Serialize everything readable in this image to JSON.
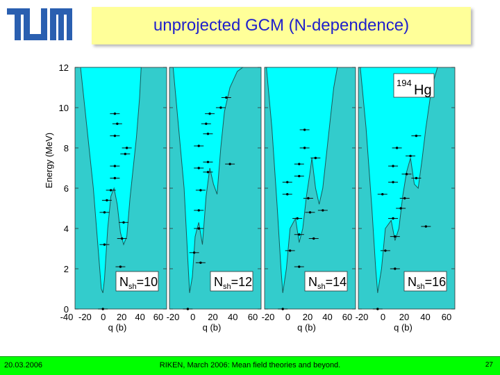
{
  "slide": {
    "title": "unprojected GCM (N-dependence)",
    "footer_date": "20.03.2006",
    "footer_center": "RIKEN, March 2006: Mean field theories and beyond.",
    "page_number": "27",
    "logo_text": "TUM"
  },
  "colors": {
    "title_bg": "#ffff99",
    "title_text": "#1f1fcc",
    "footer_bg": "#00ff00",
    "plot_bg": "#33cccc",
    "well_fill": "#00ffff"
  },
  "chart_data": {
    "type": "scatter",
    "ylabel": "Energy (MeV)",
    "xlabel": "q (b)",
    "ylim": [
      0,
      12
    ],
    "yticks": [
      0,
      2,
      4,
      6,
      8,
      10,
      12
    ],
    "grid": false,
    "nucleus_label": {
      "mass": "194",
      "symbol": "Hg"
    },
    "panels": [
      {
        "label": "N",
        "label_sub": "sh",
        "label_value": "=10",
        "xticks": [
          "-40",
          "-20",
          "0",
          "20",
          "40",
          "60"
        ],
        "levels": [
          {
            "q": -10,
            "E": 0.0
          },
          {
            "q": -8,
            "E": 3.2
          },
          {
            "q": -8,
            "E": 4.8
          },
          {
            "q": -5,
            "E": 5.4
          },
          {
            "q": 0,
            "E": 5.9
          },
          {
            "q": 5,
            "E": 6.5
          },
          {
            "q": 5,
            "E": 7.1
          },
          {
            "q": 5,
            "E": 8.6
          },
          {
            "q": 8,
            "E": 9.2
          },
          {
            "q": 5,
            "E": 9.7
          },
          {
            "q": 18,
            "E": 7.7
          },
          {
            "q": 20,
            "E": 8.0
          },
          {
            "q": 12,
            "E": 2.1
          },
          {
            "q": 14,
            "E": 3.5
          },
          {
            "q": 16,
            "E": 4.3
          }
        ]
      },
      {
        "label": "N",
        "label_sub": "sh",
        "label_value": "=12",
        "xticks": [
          "-20",
          "0",
          "20",
          "40",
          "60"
        ],
        "levels": [
          {
            "q": -10,
            "E": 0.0
          },
          {
            "q": -3,
            "E": 2.8
          },
          {
            "q": 2,
            "E": 4.0
          },
          {
            "q": 2,
            "E": 4.9
          },
          {
            "q": 4,
            "E": 5.9
          },
          {
            "q": 4,
            "E": 2.3
          },
          {
            "q": 2,
            "E": 7.0
          },
          {
            "q": 2,
            "E": 8.1
          },
          {
            "q": 12,
            "E": 6.8
          },
          {
            "q": 12,
            "E": 7.3
          },
          {
            "q": 12,
            "E": 8.7
          },
          {
            "q": 14,
            "E": 9.7
          },
          {
            "q": 10,
            "E": 9.2
          },
          {
            "q": 26,
            "E": 10.0
          },
          {
            "q": 32,
            "E": 10.5
          },
          {
            "q": 36,
            "E": 7.2
          }
        ]
      },
      {
        "label": "N",
        "label_sub": "sh",
        "label_value": "=14",
        "xticks": [
          "-20",
          "0",
          "20",
          "40",
          "60"
        ],
        "levels": [
          {
            "q": -10,
            "E": 0.0
          },
          {
            "q": -2,
            "E": 2.9
          },
          {
            "q": 8,
            "E": 2.1
          },
          {
            "q": 8,
            "E": 3.7
          },
          {
            "q": 6,
            "E": 4.5
          },
          {
            "q": -5,
            "E": 5.7
          },
          {
            "q": -5,
            "E": 6.3
          },
          {
            "q": 8,
            "E": 6.6
          },
          {
            "q": 8,
            "E": 7.2
          },
          {
            "q": 14,
            "E": 8.0
          },
          {
            "q": 14,
            "E": 8.9
          },
          {
            "q": 18,
            "E": 5.5
          },
          {
            "q": 20,
            "E": 4.8
          },
          {
            "q": 24,
            "E": 3.5
          },
          {
            "q": 26,
            "E": 7.5
          },
          {
            "q": 34,
            "E": 4.9
          }
        ]
      },
      {
        "label": "N",
        "label_sub": "sh",
        "label_value": "=16",
        "xticks": [
          "-20",
          "0",
          "20",
          "40",
          "60"
        ],
        "levels": [
          {
            "q": -10,
            "E": 0.0
          },
          {
            "q": -2,
            "E": 2.9
          },
          {
            "q": 8,
            "E": 2.0
          },
          {
            "q": 8,
            "E": 3.6
          },
          {
            "q": 6,
            "E": 4.5
          },
          {
            "q": -5,
            "E": 5.7
          },
          {
            "q": 6,
            "E": 6.3
          },
          {
            "q": 6,
            "E": 7.1
          },
          {
            "q": 10,
            "E": 8.0
          },
          {
            "q": 14,
            "E": 5.0
          },
          {
            "q": 18,
            "E": 5.5
          },
          {
            "q": 20,
            "E": 6.7
          },
          {
            "q": 24,
            "E": 7.6
          },
          {
            "q": 30,
            "E": 6.5
          },
          {
            "q": 30,
            "E": 8.6
          },
          {
            "q": 40,
            "E": 4.1
          }
        ]
      }
    ]
  }
}
